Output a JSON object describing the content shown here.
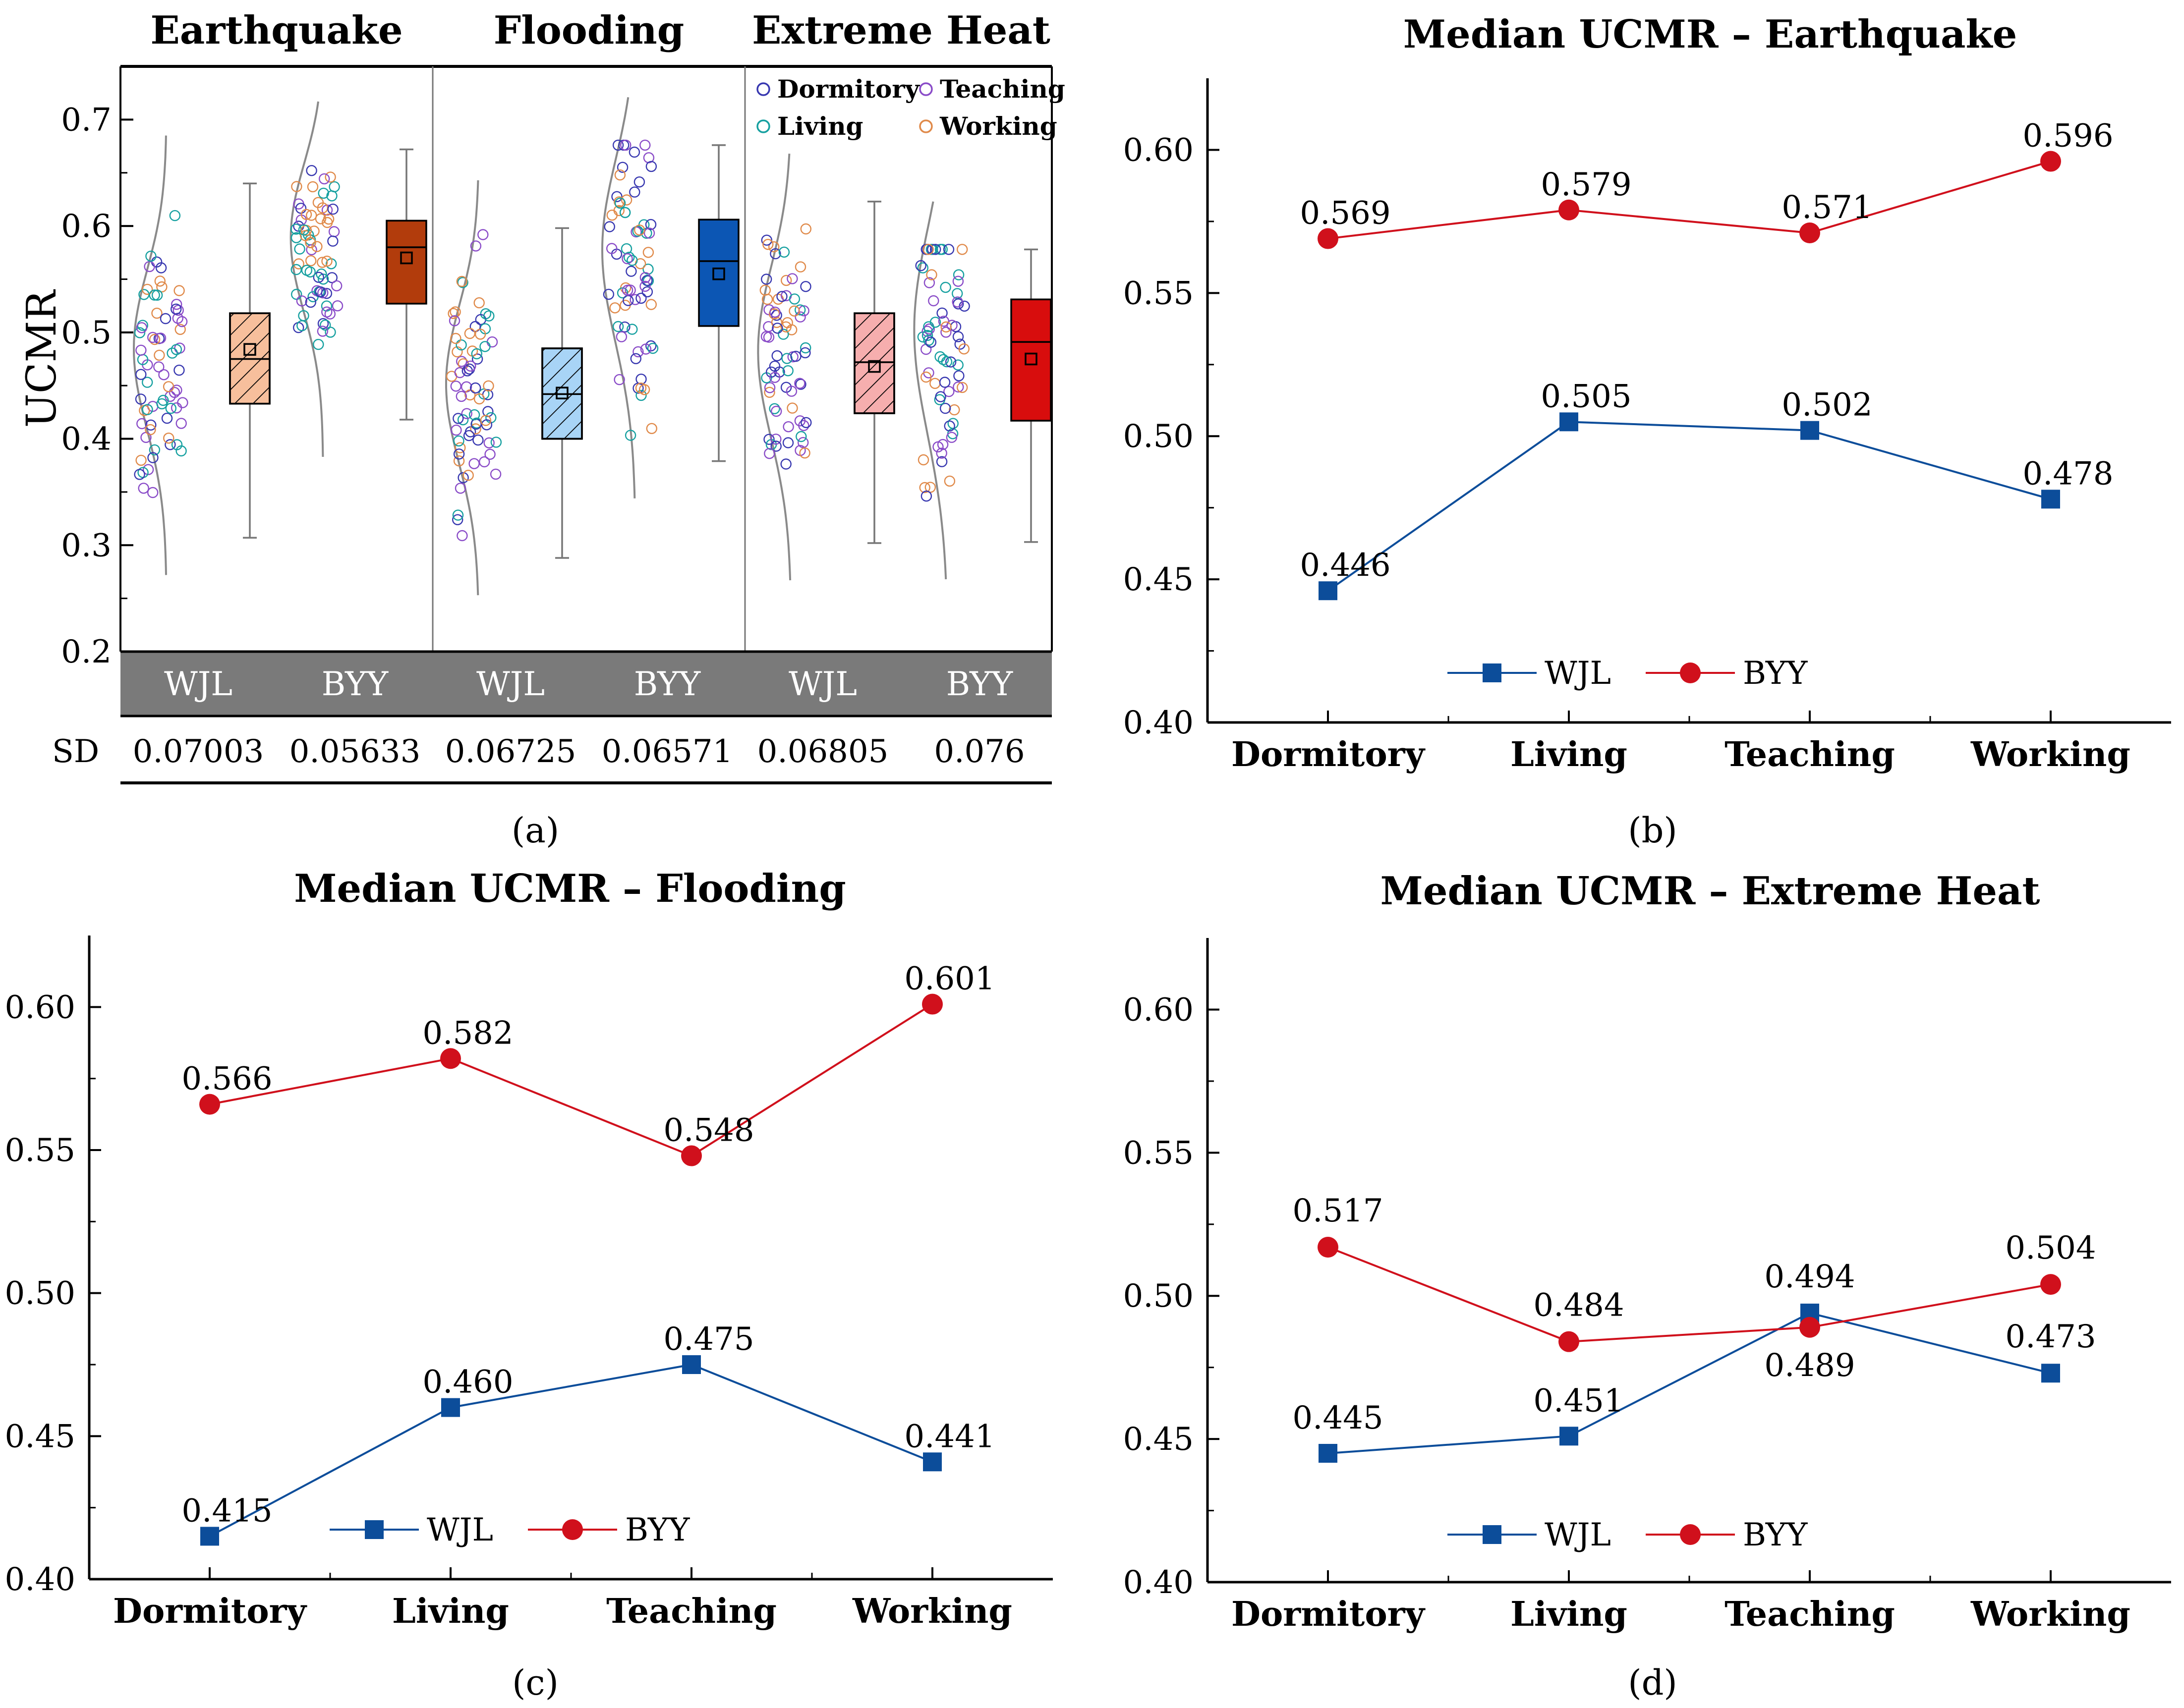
{
  "figure": {
    "panel_labels": [
      "(a)",
      "(b)",
      "(c)",
      "(d)"
    ]
  },
  "colors": {
    "wjl": "#0c4d9a",
    "byy": "#d0101c",
    "axis": "#000000",
    "density": "#8a8a8a",
    "group_bar": "#7a7a7a",
    "dormitory": "#3838b0",
    "teaching": "#8a4cc8",
    "living": "#16a0a0",
    "working": "#e08a4a",
    "box_wjl_eq": "#f7bf9c",
    "box_byy_eq": "#b23c0c",
    "box_wjl_fl": "#a8d4f6",
    "box_byy_fl": "#0c56b4",
    "box_wjl_eh": "#f6aeae",
    "box_byy_eh": "#d80d0d"
  },
  "chart_data": [
    {
      "panel": "(a)",
      "type": "box",
      "ylabel": "UCMR",
      "ylim": [
        0.2,
        0.75
      ],
      "yticks": [
        "0.2",
        "0.3",
        "0.4",
        "0.5",
        "0.6",
        "0.7"
      ],
      "hazards": [
        "Earthquake",
        "Flooding",
        "Extreme Heat"
      ],
      "groups": [
        "WJL",
        "BYY",
        "WJL",
        "BYY",
        "WJL",
        "BYY"
      ],
      "legend": [
        "Dormitory",
        "Teaching",
        "Living",
        "Working"
      ],
      "sd_label": "SD",
      "sd_values": [
        "0.07003",
        "0.05633",
        "0.06725",
        "0.06571",
        "0.06805",
        "0.076"
      ],
      "boxes": [
        {
          "hazard": "Earthquake",
          "group": "WJL",
          "whisker_low": 0.307,
          "q1": 0.433,
          "median": 0.475,
          "q3": 0.518,
          "whisker_high": 0.64,
          "mean": 0.484
        },
        {
          "hazard": "Earthquake",
          "group": "BYY",
          "whisker_low": 0.418,
          "q1": 0.527,
          "median": 0.58,
          "q3": 0.605,
          "whisker_high": 0.672,
          "mean": 0.57
        },
        {
          "hazard": "Flooding",
          "group": "WJL",
          "whisker_low": 0.288,
          "q1": 0.4,
          "median": 0.442,
          "q3": 0.485,
          "whisker_high": 0.598,
          "mean": 0.443
        },
        {
          "hazard": "Flooding",
          "group": "BYY",
          "whisker_low": 0.379,
          "q1": 0.506,
          "median": 0.567,
          "q3": 0.606,
          "whisker_high": 0.676,
          "mean": 0.555
        },
        {
          "hazard": "Extreme Heat",
          "group": "WJL",
          "whisker_low": 0.302,
          "q1": 0.424,
          "median": 0.472,
          "q3": 0.518,
          "whisker_high": 0.623,
          "mean": 0.468
        },
        {
          "hazard": "Extreme Heat",
          "group": "BYY",
          "whisker_low": 0.303,
          "q1": 0.417,
          "median": 0.491,
          "q3": 0.531,
          "whisker_high": 0.578,
          "mean": 0.475
        }
      ]
    },
    {
      "panel": "(b)",
      "type": "line",
      "title": "Median UCMR – Earthquake",
      "categories": [
        "Dormitory",
        "Living",
        "Teaching",
        "Working"
      ],
      "ylim": [
        0.4,
        0.625
      ],
      "yticks": [
        "0.40",
        "0.45",
        "0.50",
        "0.55",
        "0.60"
      ],
      "series": [
        {
          "name": "WJL",
          "values": [
            0.446,
            0.505,
            0.502,
            0.478
          ],
          "labels": [
            "0.446",
            "0.505",
            "0.502",
            "0.478"
          ]
        },
        {
          "name": "BYY",
          "values": [
            0.569,
            0.579,
            0.571,
            0.596
          ],
          "labels": [
            "0.569",
            "0.579",
            "0.571",
            "0.596"
          ]
        }
      ]
    },
    {
      "panel": "(c)",
      "type": "line",
      "title": "Median UCMR – Flooding",
      "categories": [
        "Dormitory",
        "Living",
        "Teaching",
        "Working"
      ],
      "ylim": [
        0.4,
        0.625
      ],
      "yticks": [
        "0.40",
        "0.45",
        "0.50",
        "0.55",
        "0.60"
      ],
      "series": [
        {
          "name": "WJL",
          "values": [
            0.415,
            0.46,
            0.475,
            0.441
          ],
          "labels": [
            "0.415",
            "0.460",
            "0.475",
            "0.441"
          ]
        },
        {
          "name": "BYY",
          "values": [
            0.566,
            0.582,
            0.548,
            0.601
          ],
          "labels": [
            "0.566",
            "0.582",
            "0.548",
            "0.601"
          ]
        }
      ]
    },
    {
      "panel": "(d)",
      "type": "line",
      "title": "Median UCMR – Extreme Heat",
      "categories": [
        "Dormitory",
        "Living",
        "Teaching",
        "Working"
      ],
      "ylim": [
        0.4,
        0.625
      ],
      "yticks": [
        "0.40",
        "0.45",
        "0.50",
        "0.55",
        "0.60"
      ],
      "series": [
        {
          "name": "WJL",
          "values": [
            0.445,
            0.451,
            0.494,
            0.473
          ],
          "labels": [
            "0.445",
            "0.451",
            "0.494",
            "0.473"
          ]
        },
        {
          "name": "BYY",
          "values": [
            0.517,
            0.484,
            0.489,
            0.504
          ],
          "labels": [
            "0.517",
            "0.484",
            "0.489",
            "0.504"
          ]
        }
      ]
    }
  ]
}
